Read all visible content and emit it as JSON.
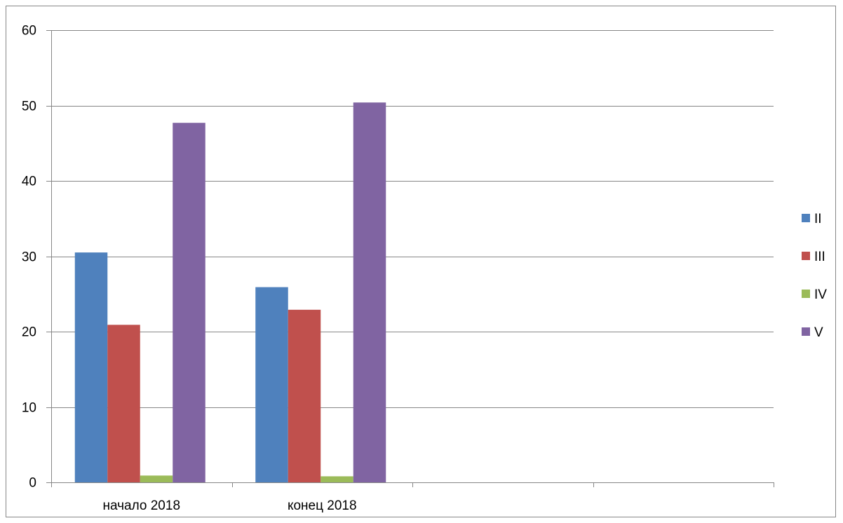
{
  "chart_data": {
    "type": "bar",
    "title": "",
    "xlabel": "",
    "ylabel": "",
    "categories": [
      "начало 2018",
      "конец 2018",
      "",
      ""
    ],
    "ylim": [
      0,
      60
    ],
    "yticks": [
      "0",
      "10",
      "20",
      "30",
      "40",
      "50",
      "60"
    ],
    "grid": true,
    "legend_position": "right",
    "series": [
      {
        "name": "II",
        "color": "#4F81BD",
        "values": [
          30.5,
          25.9,
          null,
          null
        ]
      },
      {
        "name": "III",
        "color": "#C0504D",
        "values": [
          20.9,
          22.9,
          null,
          null
        ]
      },
      {
        "name": "IV",
        "color": "#9BBB59",
        "values": [
          0.9,
          0.8,
          null,
          null
        ]
      },
      {
        "name": "V",
        "color": "#8064A2",
        "values": [
          47.7,
          50.4,
          null,
          null
        ]
      }
    ]
  }
}
